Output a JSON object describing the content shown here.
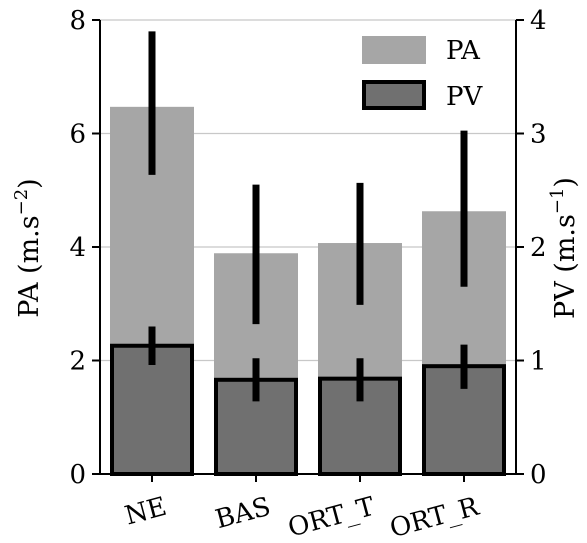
{
  "chart_data": {
    "type": "bar",
    "categories": [
      "NE",
      "BAS",
      "ORT_T",
      "ORT_R"
    ],
    "series": [
      {
        "name": "PA",
        "axis": "left",
        "color": "#a6a6a6",
        "values": [
          6.47,
          3.89,
          4.07,
          4.63
        ],
        "error_low": [
          5.27,
          2.64,
          2.98,
          3.3
        ],
        "error_high": [
          7.8,
          5.1,
          5.13,
          6.05
        ]
      },
      {
        "name": "PV",
        "axis": "right",
        "color": "#707070",
        "edgecolor": "#000000",
        "values": [
          1.13,
          0.83,
          0.84,
          0.95
        ],
        "error_low": [
          0.96,
          0.64,
          0.64,
          0.75
        ],
        "error_high": [
          1.3,
          1.02,
          1.02,
          1.14
        ]
      }
    ],
    "ylabel_left": "PA (m.s",
    "ylabel_left_sup": "−2",
    "ylabel_left_close": ")",
    "ylabel_right": "PV (m.s",
    "ylabel_right_sup": "−1",
    "ylabel_right_close": ")",
    "ylim_left": [
      0,
      8
    ],
    "ylim_right": [
      0,
      4
    ],
    "yticks_left": [
      "0",
      "2",
      "4",
      "6",
      "8"
    ],
    "yticks_right": [
      "0",
      "1",
      "2",
      "3",
      "4"
    ],
    "grid": "horizontal",
    "legend_position": "top-right",
    "xtick_rotation": -15
  }
}
